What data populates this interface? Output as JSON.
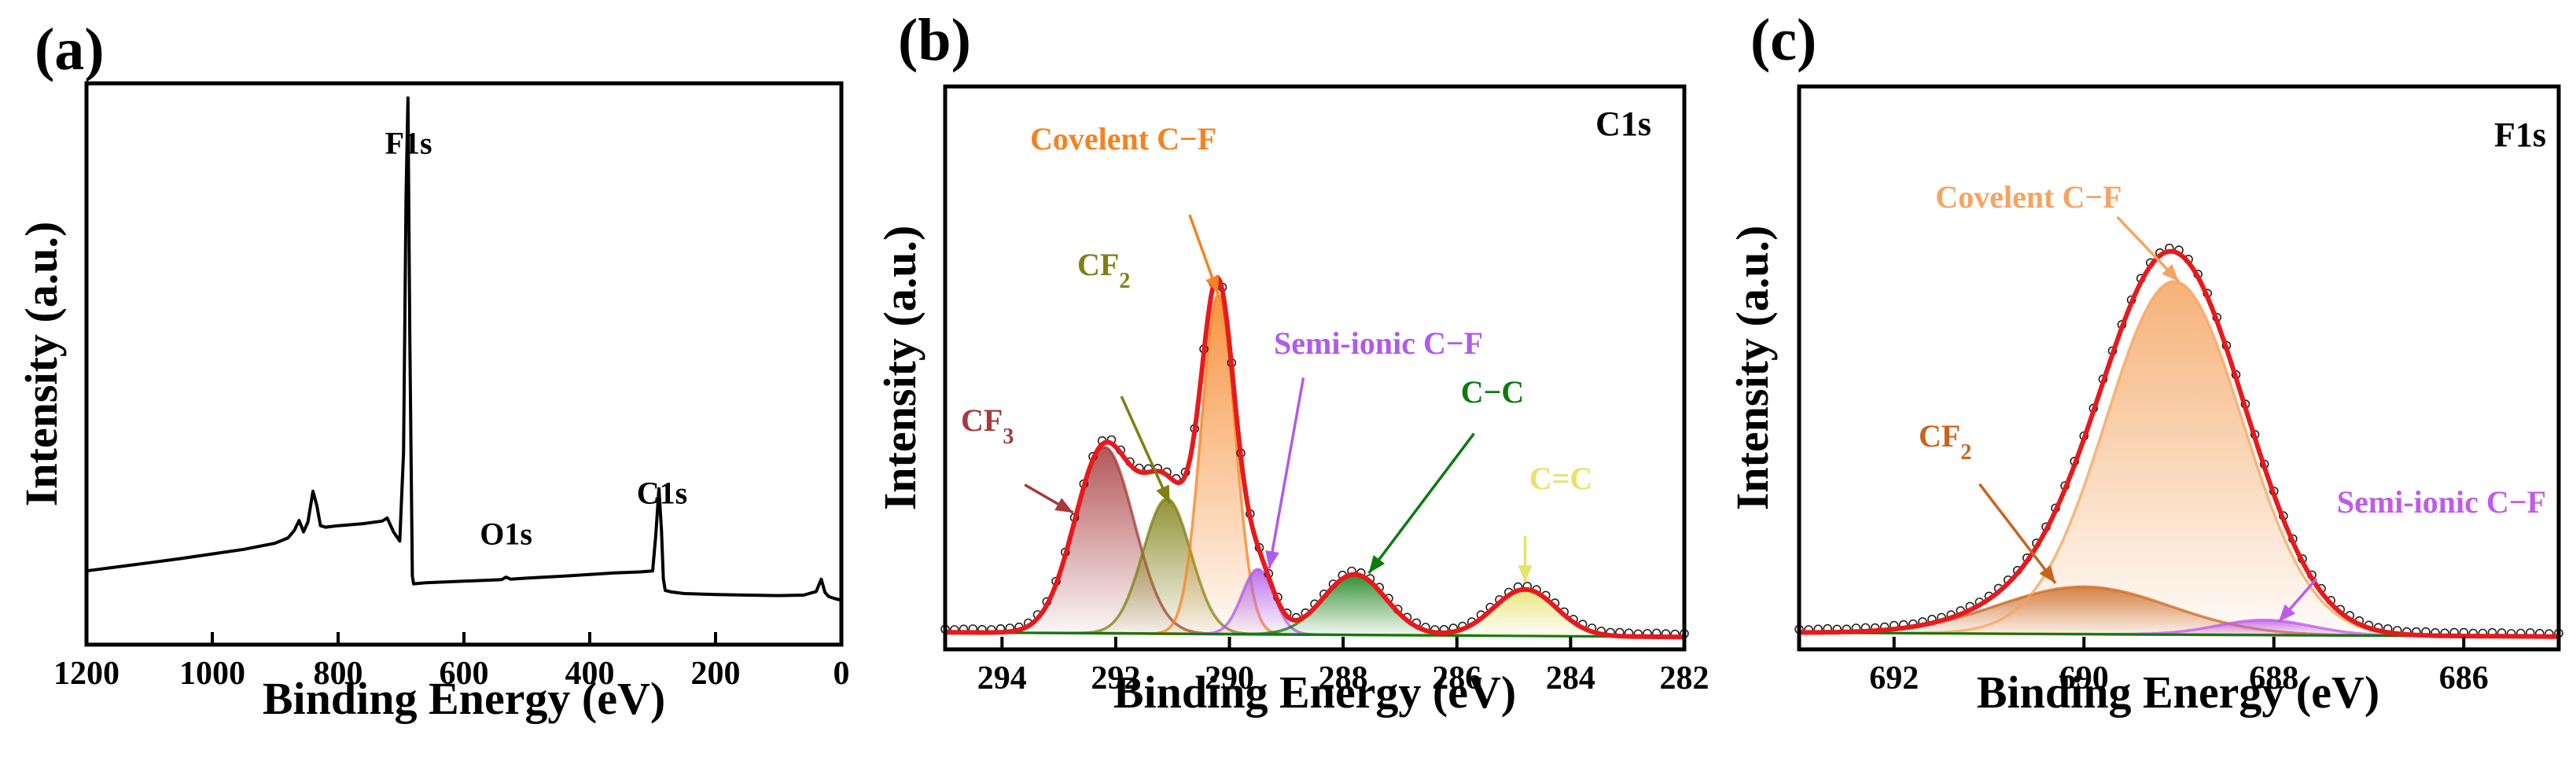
{
  "chart_data": [
    {
      "panel": "(a)",
      "type": "line",
      "title": "",
      "xlabel": "Binding Energy (eV)",
      "ylabel": "Intensity (a.u.)",
      "xlim": [
        1200,
        0
      ],
      "ylim": [
        0,
        100
      ],
      "xticks": [
        1200,
        1000,
        800,
        600,
        400,
        200,
        0
      ],
      "peak_labels": [
        {
          "text": "F1s",
          "x": 688,
          "y": 86
        },
        {
          "text": "O1s",
          "x": 533,
          "y": 10
        },
        {
          "text": "C1s",
          "x": 285,
          "y": 18
        }
      ],
      "survey": {
        "x": [
          1200,
          1150,
          1100,
          1050,
          1000,
          950,
          900,
          880,
          870,
          862,
          855,
          848,
          840,
          834,
          828,
          820,
          800,
          760,
          730,
          722,
          712,
          702,
          696,
          692,
          689,
          686,
          682,
          680,
          660,
          600,
          560,
          540,
          533,
          526,
          500,
          440,
          400,
          360,
          320,
          300,
          295,
          290,
          286,
          283,
          280,
          270,
          250,
          200,
          150,
          100,
          60,
          40,
          32,
          26,
          20,
          10,
          0
        ],
        "y": [
          7,
          7.8,
          8.6,
          9.4,
          10.3,
          11.2,
          12.4,
          13.4,
          14.8,
          16.8,
          14.6,
          16.5,
          22.5,
          19.8,
          15.8,
          15.5,
          15.8,
          16.2,
          16.7,
          17.3,
          14.6,
          12.8,
          30,
          80,
          99,
          52,
          6,
          4.5,
          4.7,
          5,
          5.2,
          5.3,
          5.8,
          5.4,
          5.6,
          6,
          6.3,
          6.6,
          6.8,
          7,
          14,
          23,
          15,
          5.5,
          3.2,
          2.9,
          2.6,
          2.4,
          2.3,
          2.2,
          2.3,
          3,
          5.4,
          2.8,
          2,
          1.6,
          1.3
        ]
      }
    },
    {
      "panel": "(b)",
      "type": "line",
      "title": "",
      "corner_label": "C1s",
      "xlabel": "Binding Energy (eV)",
      "ylabel": "Intensity (a.u.)",
      "xlim": [
        295,
        282
      ],
      "ylim": [
        0,
        100
      ],
      "xticks": [
        294,
        292,
        290,
        288,
        286,
        284,
        282
      ],
      "fit_envelope_color": "#e8191c",
      "baseline": {
        "x0": 295,
        "y0": 1.3,
        "x1": 282,
        "y1": 0.3
      },
      "components": [
        {
          "name": "CF3",
          "label": "CF",
          "sub": "3",
          "center": 292.2,
          "height": 40,
          "sigma": 0.52,
          "color": "#a63a3a",
          "arrow_from": [
            293.6,
            33
          ],
          "arrow_to": [
            292.75,
            27
          ]
        },
        {
          "name": "CF2",
          "label": "CF",
          "sub": "2",
          "center": 291.1,
          "height": 29,
          "sigma": 0.42,
          "color": "#7f7f13",
          "arrow_from": [
            291.9,
            52
          ],
          "arrow_to": [
            291.05,
            29
          ]
        },
        {
          "name": "Covelent C−F",
          "label": "Covelent C−F",
          "sub": "",
          "center": 290.2,
          "height": 73,
          "sigma": 0.3,
          "color": "#f58220",
          "arrow_from": [
            290.7,
            91
          ],
          "arrow_to": [
            290.2,
            74
          ]
        },
        {
          "name": "Semi-ionic C−F",
          "label": "Semi-ionic C−F",
          "sub": "",
          "center": 289.5,
          "height": 14,
          "sigma": 0.28,
          "color": "#b05be8",
          "arrow_from": [
            288.7,
            56
          ],
          "arrow_to": [
            289.3,
            15
          ]
        },
        {
          "name": "C−C",
          "label": "C−C",
          "sub": "",
          "center": 287.8,
          "height": 13,
          "sigma": 0.55,
          "color": "#0e7a0e",
          "arrow_from": [
            285.7,
            44
          ],
          "arrow_to": [
            287.55,
            14
          ]
        },
        {
          "name": "C=C",
          "label": "C=C",
          "sub": "",
          "center": 284.8,
          "height": 10,
          "sigma": 0.55,
          "color": "#e7e26a",
          "arrow_from": [
            284.8,
            22
          ],
          "arrow_to": [
            284.8,
            12
          ]
        }
      ]
    },
    {
      "panel": "(c)",
      "type": "line",
      "title": "",
      "corner_label": "F1s",
      "xlabel": "Binding Energy (eV)",
      "ylabel": "Intensity (a.u.)",
      "xlim": [
        693,
        685
      ],
      "ylim": [
        0,
        100
      ],
      "xticks": [
        692,
        690,
        688,
        686
      ],
      "fit_envelope_color": "#e8191c",
      "baseline": {
        "x0": 693,
        "y0": 1.5,
        "x1": 685,
        "y1": 0.6
      },
      "components": [
        {
          "name": "CF2",
          "label": "CF",
          "sub": "2",
          "center": 690.0,
          "height": 11,
          "sigma": 0.9,
          "color": "#c8641e",
          "arrow_from": [
            691.1,
            36
          ],
          "arrow_to": [
            690.3,
            13
          ]
        },
        {
          "name": "Covelent C−F",
          "label": "Covelent C−F",
          "sub": "",
          "center": 689.05,
          "height": 82,
          "sigma": 0.72,
          "color": "#f4a460",
          "arrow_from": [
            689.65,
            98
          ],
          "arrow_to": [
            689.0,
            83
          ]
        },
        {
          "name": "Semi-ionic C−F",
          "label": "Semi-ionic C−F",
          "sub": "",
          "center": 688.1,
          "height": 3.5,
          "sigma": 0.5,
          "color": "#c05be8",
          "arrow_from": [
            687.55,
            14
          ],
          "arrow_to": [
            687.95,
            4
          ]
        }
      ]
    }
  ]
}
